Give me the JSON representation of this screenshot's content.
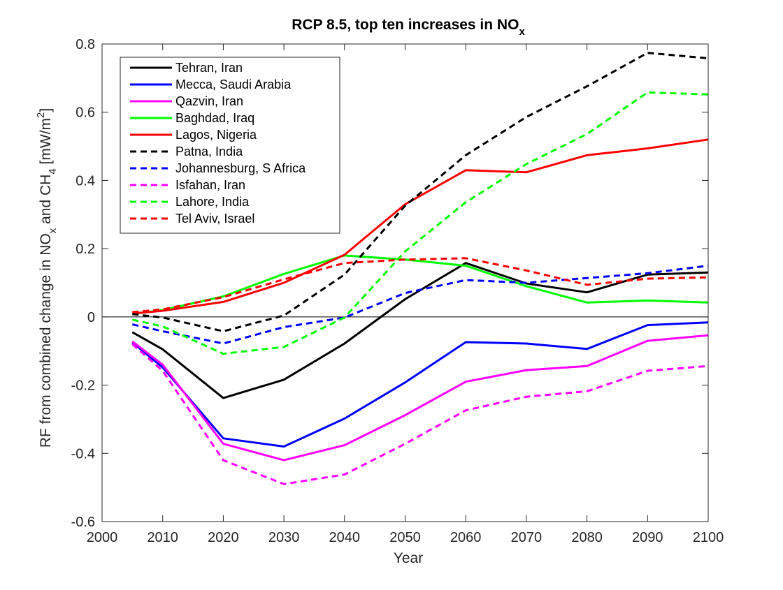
{
  "chart_data": {
    "type": "line",
    "title": "RCP 8.5, top ten increases in NO",
    "title_subscript": "x",
    "xlabel": "Year",
    "ylabel_parts": [
      "RF from combined change in NO",
      "x",
      " and CH",
      "4",
      " [mW/m",
      "2",
      "]"
    ],
    "xlim": [
      2005,
      2100
    ],
    "ylim": [
      -0.6,
      0.8
    ],
    "x_ticks": [
      2000,
      2010,
      2020,
      2030,
      2040,
      2050,
      2060,
      2070,
      2080,
      2090,
      2100
    ],
    "x_tick_labels": [
      "2000",
      "2010",
      "2020",
      "2030",
      "2040",
      "2050",
      "2060",
      "2070",
      "2080",
      "2090",
      "2100"
    ],
    "y_ticks": [
      -0.6,
      -0.4,
      -0.2,
      0,
      0.2,
      0.4,
      0.6,
      0.8
    ],
    "y_tick_labels": [
      "-0.6",
      "-0.4",
      "-0.2",
      "0",
      "0.2",
      "0.4",
      "0.6",
      "0.8"
    ],
    "zero_line": true,
    "grid": false,
    "legend_position": "top-left",
    "x": [
      2005,
      2010,
      2020,
      2030,
      2040,
      2050,
      2060,
      2070,
      2080,
      2090,
      2100
    ],
    "series": [
      {
        "name": "Tehran, Iran",
        "color": "#000000",
        "dash": "solid",
        "values": [
          -0.045,
          -0.095,
          -0.238,
          -0.184,
          -0.078,
          0.052,
          0.158,
          0.098,
          0.072,
          0.124,
          0.13
        ]
      },
      {
        "name": "Mecca, Saudi Arabia",
        "color": "#0000ff",
        "dash": "solid",
        "values": [
          -0.075,
          -0.148,
          -0.356,
          -0.38,
          -0.298,
          -0.192,
          -0.074,
          -0.078,
          -0.094,
          -0.024,
          -0.016
        ]
      },
      {
        "name": "Qazvin, Iran",
        "color": "#ff00ff",
        "dash": "solid",
        "values": [
          -0.072,
          -0.14,
          -0.372,
          -0.42,
          -0.376,
          -0.288,
          -0.19,
          -0.156,
          -0.144,
          -0.07,
          -0.054
        ]
      },
      {
        "name": "Baghdad, Iraq",
        "color": "#00ff00",
        "dash": "solid",
        "values": [
          0.008,
          0.02,
          0.06,
          0.126,
          0.18,
          0.168,
          0.15,
          0.09,
          0.042,
          0.048,
          0.042
        ]
      },
      {
        "name": "Lagos, Nigeria",
        "color": "#ff0000",
        "dash": "solid",
        "values": [
          0.01,
          0.018,
          0.044,
          0.1,
          0.182,
          0.33,
          0.43,
          0.424,
          0.474,
          0.494,
          0.52
        ]
      },
      {
        "name": "Patna, India",
        "color": "#000000",
        "dash": "dashed",
        "values": [
          0.008,
          -0.002,
          -0.042,
          0.004,
          0.124,
          0.326,
          0.474,
          0.586,
          0.676,
          0.774,
          0.758
        ]
      },
      {
        "name": "Johannesburg, S Africa",
        "color": "#0000ff",
        "dash": "dashed",
        "values": [
          -0.022,
          -0.042,
          -0.078,
          -0.03,
          -0.002,
          0.07,
          0.108,
          0.1,
          0.114,
          0.128,
          0.15
        ]
      },
      {
        "name": "Isfahan, Iran",
        "color": "#ff00ff",
        "dash": "dashed",
        "values": [
          -0.08,
          -0.158,
          -0.42,
          -0.49,
          -0.462,
          -0.372,
          -0.274,
          -0.234,
          -0.218,
          -0.158,
          -0.144
        ]
      },
      {
        "name": "Lahore, India",
        "color": "#00ff00",
        "dash": "dashed",
        "values": [
          -0.008,
          -0.028,
          -0.108,
          -0.088,
          -0.002,
          0.192,
          0.336,
          0.448,
          0.536,
          0.658,
          0.652
        ]
      },
      {
        "name": "Tel Aviv, Israel",
        "color": "#ff0000",
        "dash": "dashed",
        "values": [
          0.014,
          0.022,
          0.058,
          0.11,
          0.158,
          0.168,
          0.172,
          0.136,
          0.094,
          0.112,
          0.116
        ]
      }
    ]
  }
}
